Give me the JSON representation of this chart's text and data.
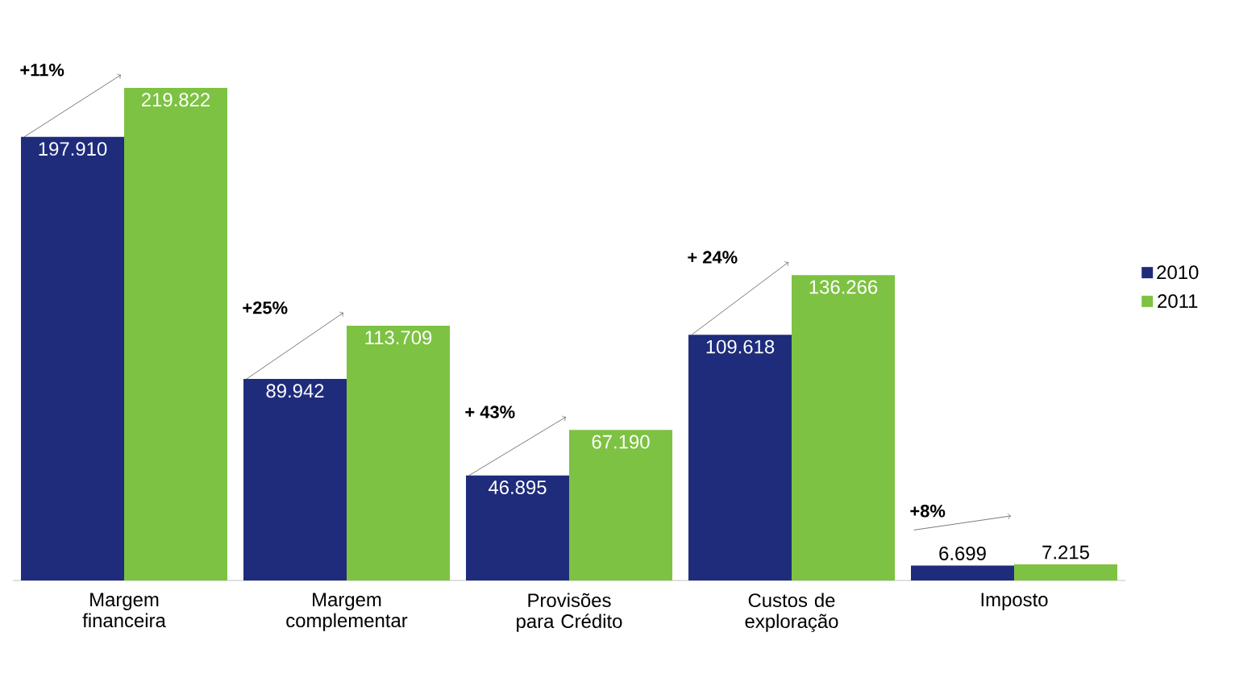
{
  "chart_data": {
    "type": "bar",
    "categories": [
      "Margem financeira",
      "Margem complementar",
      "Provisões para Crédito",
      "Custos de exploração",
      "Imposto"
    ],
    "series": [
      {
        "name": "2010",
        "color": "#1f2c7c",
        "values": [
          197910,
          89942,
          46895,
          109618,
          6699
        ],
        "value_labels": [
          "197.910",
          "89.942",
          "46.895",
          "109.618",
          "6.699"
        ]
      },
      {
        "name": "2011",
        "color": "#7dc242",
        "values": [
          219822,
          113709,
          67190,
          136266,
          7215
        ],
        "value_labels": [
          "219.822",
          "113.709",
          "67.190",
          "136.266",
          "7.215"
        ]
      }
    ],
    "annotations": [
      "+11%",
      "+25%",
      "+ 43%",
      "+ 24%",
      "+8%"
    ],
    "legend": "right"
  }
}
